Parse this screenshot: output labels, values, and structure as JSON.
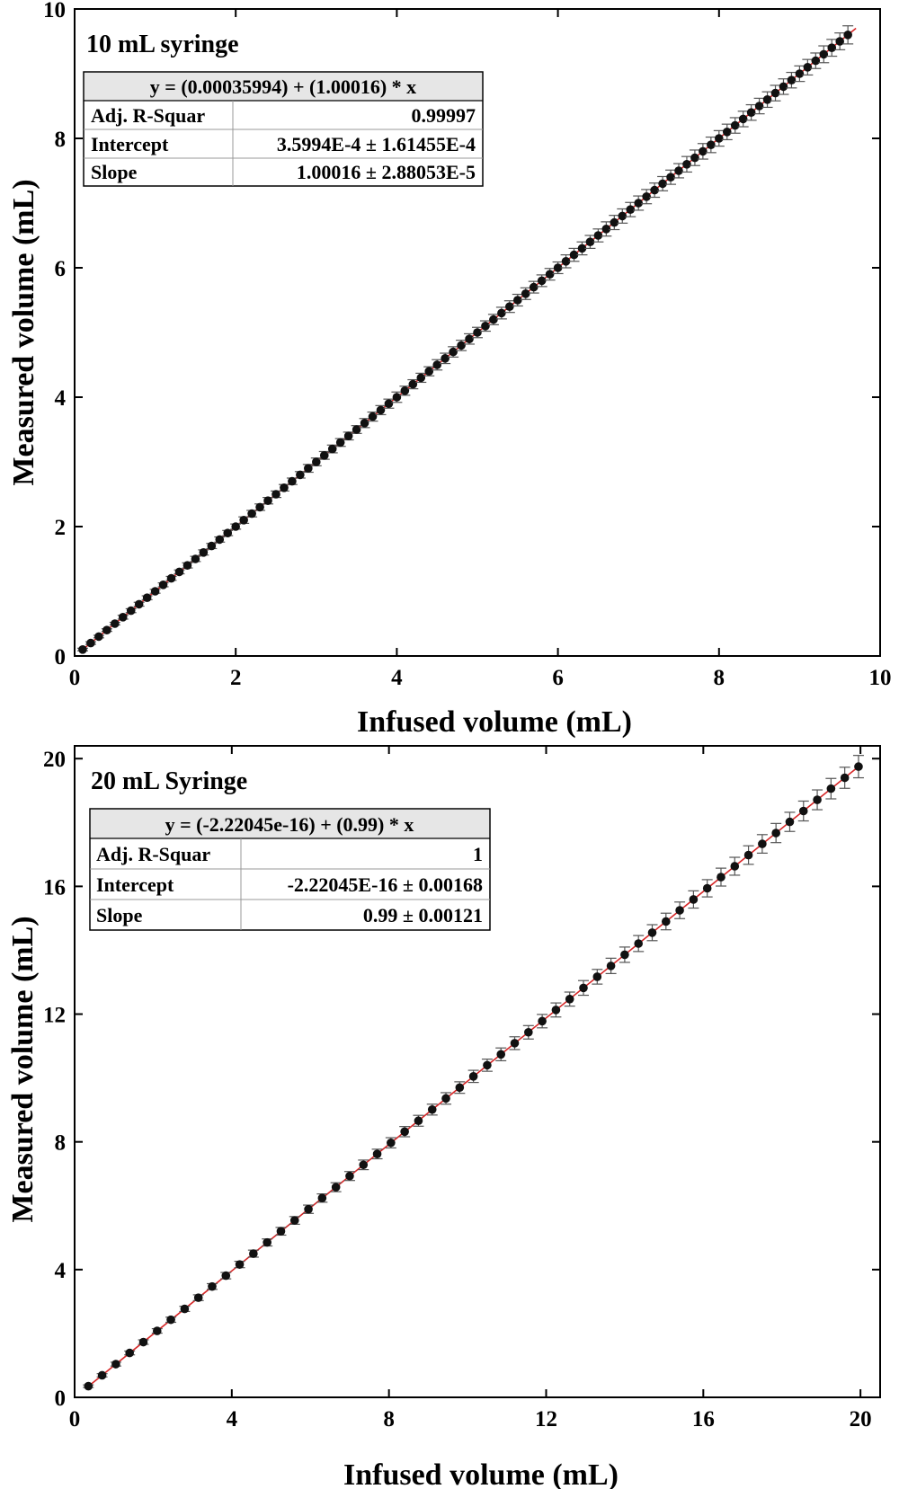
{
  "chart_data": [
    {
      "type": "scatter",
      "title": "10 mL syringe",
      "xlabel": "Infused volume (mL)",
      "ylabel": "Measured volume (mL)",
      "xlim": [
        0,
        10
      ],
      "ylim": [
        0,
        10
      ],
      "xticks": [
        "0",
        "2",
        "4",
        "6",
        "8",
        "10"
      ],
      "yticks": [
        "0",
        "2",
        "4",
        "6",
        "8",
        "10"
      ],
      "grid": false,
      "fit": {
        "equation": "y = (0.00035994) + (1.00016) * x",
        "rows": [
          {
            "label": "Adj. R-Squar",
            "value": "0.99997"
          },
          {
            "label": "Intercept",
            "value": "3.5994E-4 ± 1.61455E-4"
          },
          {
            "label": "Slope",
            "value": "1.00016 ± 2.88053E-5"
          }
        ],
        "intercept": 0.00035994,
        "slope": 1.00016,
        "x_range": [
          0.1,
          9.7
        ]
      },
      "series": [
        {
          "x": [
            0.1,
            0.2,
            0.3,
            0.4,
            0.5,
            0.6,
            0.7,
            0.8,
            0.9,
            1.0,
            1.1,
            1.2,
            1.3,
            1.4,
            1.5,
            1.6,
            1.7,
            1.8,
            1.9,
            2.0,
            2.1,
            2.2,
            2.3,
            2.4,
            2.5,
            2.6,
            2.7,
            2.8,
            2.9,
            3.0,
            3.1,
            3.2,
            3.3,
            3.4,
            3.5,
            3.6,
            3.7,
            3.8,
            3.9,
            4.0,
            4.1,
            4.2,
            4.3,
            4.4,
            4.5,
            4.6,
            4.7,
            4.8,
            4.9,
            5.0,
            5.1,
            5.2,
            5.3,
            5.4,
            5.5,
            5.6,
            5.7,
            5.8,
            5.9,
            6.0,
            6.1,
            6.2,
            6.3,
            6.4,
            6.5,
            6.6,
            6.7,
            6.8,
            6.9,
            7.0,
            7.1,
            7.2,
            7.3,
            7.4,
            7.5,
            7.6,
            7.7,
            7.8,
            7.9,
            8.0,
            8.1,
            8.2,
            8.3,
            8.4,
            8.5,
            8.6,
            8.7,
            8.8,
            8.9,
            9.0,
            9.1,
            9.2,
            9.3,
            9.4,
            9.5,
            9.6
          ],
          "y": [
            0.1,
            0.2,
            0.3,
            0.4,
            0.5,
            0.6,
            0.7,
            0.8,
            0.9,
            1.0,
            1.1,
            1.2,
            1.3,
            1.4,
            1.5,
            1.6,
            1.7,
            1.8,
            1.9,
            2.0,
            2.1,
            2.2,
            2.3,
            2.4,
            2.5,
            2.6,
            2.7,
            2.8,
            2.9,
            3.0,
            3.1,
            3.2,
            3.3,
            3.4,
            3.5,
            3.6,
            3.7,
            3.8,
            3.9,
            4.0,
            4.1,
            4.2,
            4.3,
            4.4,
            4.5,
            4.6,
            4.7,
            4.8,
            4.9,
            5.0,
            5.1,
            5.2,
            5.3,
            5.4,
            5.5,
            5.6,
            5.7,
            5.8,
            5.9,
            6.0,
            6.1,
            6.2,
            6.3,
            6.4,
            6.5,
            6.6,
            6.7,
            6.8,
            6.9,
            7.0,
            7.1,
            7.2,
            7.3,
            7.4,
            7.5,
            7.6,
            7.7,
            7.8,
            7.9,
            8.0,
            8.1,
            8.2,
            8.3,
            8.4,
            8.5,
            8.6,
            8.7,
            8.8,
            8.9,
            9.0,
            9.1,
            9.2,
            9.3,
            9.4,
            9.5,
            9.6
          ],
          "err": [
            0.02,
            0.02,
            0.02,
            0.02,
            0.02,
            0.03,
            0.03,
            0.03,
            0.03,
            0.03,
            0.03,
            0.03,
            0.03,
            0.04,
            0.04,
            0.04,
            0.04,
            0.04,
            0.04,
            0.04,
            0.05,
            0.05,
            0.05,
            0.05,
            0.05,
            0.05,
            0.05,
            0.05,
            0.06,
            0.06,
            0.06,
            0.06,
            0.06,
            0.06,
            0.06,
            0.07,
            0.07,
            0.07,
            0.07,
            0.08,
            0.07,
            0.07,
            0.07,
            0.07,
            0.08,
            0.08,
            0.08,
            0.08,
            0.08,
            0.08,
            0.08,
            0.08,
            0.09,
            0.09,
            0.09,
            0.09,
            0.09,
            0.09,
            0.09,
            0.09,
            0.1,
            0.1,
            0.1,
            0.1,
            0.1,
            0.11,
            0.11,
            0.11,
            0.11,
            0.11,
            0.11,
            0.11,
            0.11,
            0.11,
            0.11,
            0.12,
            0.12,
            0.12,
            0.12,
            0.12,
            0.12,
            0.12,
            0.12,
            0.12,
            0.12,
            0.12,
            0.12,
            0.12,
            0.12,
            0.12,
            0.12,
            0.12,
            0.13,
            0.13,
            0.13,
            0.14
          ]
        }
      ],
      "colors": {
        "marker": "#111111",
        "fit_line": "#d62728",
        "error_bar": "#555555"
      }
    },
    {
      "type": "scatter",
      "title": "20 mL Syringe",
      "xlabel": "Infused volume (mL)",
      "ylabel": "Measured volume (mL)",
      "xlim": [
        0,
        20.5
      ],
      "ylim": [
        0,
        20.4
      ],
      "xticks": [
        "0",
        "4",
        "8",
        "12",
        "16",
        "20"
      ],
      "yticks": [
        "0",
        "4",
        "8",
        "12",
        "16",
        "20"
      ],
      "grid": false,
      "fit": {
        "equation": "y = (-2.22045e-16) + (0.99) * x",
        "rows": [
          {
            "label": "Adj. R-Squar",
            "value": "1"
          },
          {
            "label": "Intercept",
            "value": "-2.22045E-16 ± 0.00168"
          },
          {
            "label": "Slope",
            "value": "0.99 ± 0.00121"
          }
        ],
        "intercept": 0,
        "slope": 0.99,
        "x_range": [
          0.3,
          20
        ]
      },
      "series": [
        {
          "x": [
            0.35,
            0.7,
            1.05,
            1.4,
            1.75,
            2.1,
            2.45,
            2.8,
            3.15,
            3.5,
            3.85,
            4.2,
            4.55,
            4.9,
            5.25,
            5.6,
            5.95,
            6.3,
            6.65,
            7.0,
            7.35,
            7.7,
            8.05,
            8.4,
            8.75,
            9.1,
            9.45,
            9.8,
            10.15,
            10.5,
            10.85,
            11.2,
            11.55,
            11.9,
            12.25,
            12.6,
            12.95,
            13.3,
            13.65,
            14.0,
            14.35,
            14.7,
            15.05,
            15.4,
            15.75,
            16.1,
            16.45,
            16.8,
            17.15,
            17.5,
            17.85,
            18.2,
            18.55,
            18.9,
            19.25,
            19.6,
            19.95
          ],
          "y": [
            0.35,
            0.69,
            1.04,
            1.39,
            1.73,
            2.08,
            2.43,
            2.77,
            3.12,
            3.47,
            3.81,
            4.16,
            4.5,
            4.85,
            5.2,
            5.54,
            5.89,
            6.24,
            6.58,
            6.93,
            7.28,
            7.62,
            7.97,
            8.32,
            8.66,
            9.01,
            9.36,
            9.7,
            10.05,
            10.4,
            10.74,
            11.09,
            11.43,
            11.78,
            12.13,
            12.47,
            12.82,
            13.17,
            13.51,
            13.86,
            14.21,
            14.55,
            14.9,
            15.25,
            15.59,
            15.94,
            16.29,
            16.63,
            16.98,
            17.33,
            17.67,
            18.02,
            18.36,
            18.71,
            19.06,
            19.4,
            19.75
          ],
          "err": [
            0.04,
            0.05,
            0.06,
            0.06,
            0.07,
            0.07,
            0.08,
            0.08,
            0.09,
            0.09,
            0.1,
            0.1,
            0.11,
            0.11,
            0.12,
            0.12,
            0.13,
            0.13,
            0.14,
            0.14,
            0.15,
            0.15,
            0.16,
            0.16,
            0.17,
            0.17,
            0.18,
            0.18,
            0.19,
            0.19,
            0.2,
            0.2,
            0.21,
            0.21,
            0.22,
            0.22,
            0.23,
            0.23,
            0.24,
            0.24,
            0.25,
            0.25,
            0.26,
            0.26,
            0.27,
            0.27,
            0.28,
            0.28,
            0.29,
            0.29,
            0.3,
            0.3,
            0.31,
            0.31,
            0.32,
            0.33,
            0.35
          ]
        }
      ],
      "colors": {
        "marker": "#111111",
        "fit_line": "#d62728",
        "error_bar": "#555555"
      }
    }
  ]
}
